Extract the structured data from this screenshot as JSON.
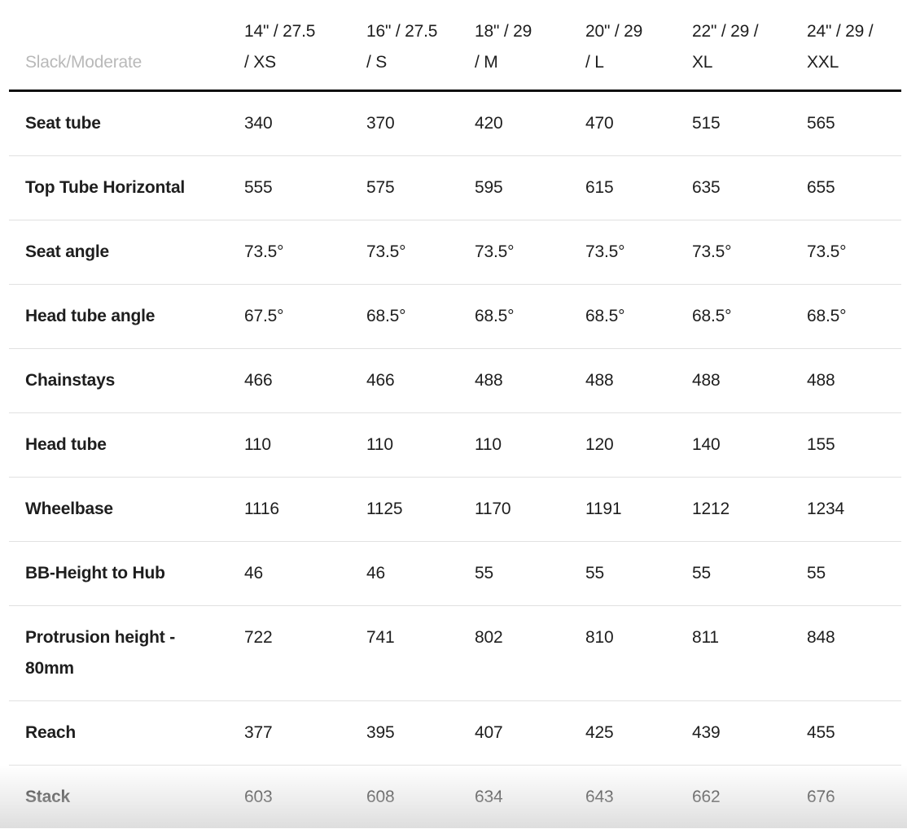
{
  "chart_data": {
    "type": "table",
    "corner_label": "Slack/Moderate",
    "columns": [
      {
        "label": "14\" / 27.5 / XS",
        "line1": "14\" / 27.5",
        "line2": "/ XS"
      },
      {
        "label": "16\" / 27.5 / S",
        "line1": "16\" / 27.5",
        "line2": "/ S"
      },
      {
        "label": "18\" / 29 / M",
        "line1": "18\" / 29",
        "line2": "/ M"
      },
      {
        "label": "20\" / 29 / L",
        "line1": "20\" / 29",
        "line2": "/ L"
      },
      {
        "label": "22\" / 29 / XL",
        "line1": "22\" / 29 /",
        "line2": "XL"
      },
      {
        "label": "24\" / 29 / XXL",
        "line1": "24\" / 29 /",
        "line2": "XXL"
      }
    ],
    "rows": [
      {
        "label": "Seat tube",
        "values": [
          340,
          370,
          420,
          470,
          515,
          565
        ]
      },
      {
        "label": "Top Tube Horizontal",
        "values": [
          555,
          575,
          595,
          615,
          635,
          655
        ]
      },
      {
        "label": "Seat angle",
        "values": [
          "73.5°",
          "73.5°",
          "73.5°",
          "73.5°",
          "73.5°",
          "73.5°"
        ]
      },
      {
        "label": "Head tube angle",
        "values": [
          "67.5°",
          "68.5°",
          "68.5°",
          "68.5°",
          "68.5°",
          "68.5°"
        ]
      },
      {
        "label": "Chainstays",
        "values": [
          466,
          466,
          488,
          488,
          488,
          488
        ]
      },
      {
        "label": "Head tube",
        "values": [
          110,
          110,
          110,
          120,
          140,
          155
        ]
      },
      {
        "label": "Wheelbase",
        "values": [
          1116,
          1125,
          1170,
          1191,
          1212,
          1234
        ]
      },
      {
        "label": "BB-Height to Hub",
        "values": [
          46,
          46,
          55,
          55,
          55,
          55
        ]
      },
      {
        "label": "Protrusion height - 80mm",
        "label_line1": "Protrusion height -",
        "label_line2": "80mm",
        "values": [
          722,
          741,
          802,
          810,
          811,
          848
        ]
      },
      {
        "label": "Reach",
        "values": [
          377,
          395,
          407,
          425,
          439,
          455
        ]
      },
      {
        "label": "Stack",
        "values": [
          603,
          608,
          634,
          643,
          662,
          676
        ]
      }
    ]
  },
  "colors": {
    "text": "#1e1e1e",
    "muted_label": "#b9b9b9",
    "header_rule": "#101010",
    "row_divider": "#e1e1e1"
  }
}
